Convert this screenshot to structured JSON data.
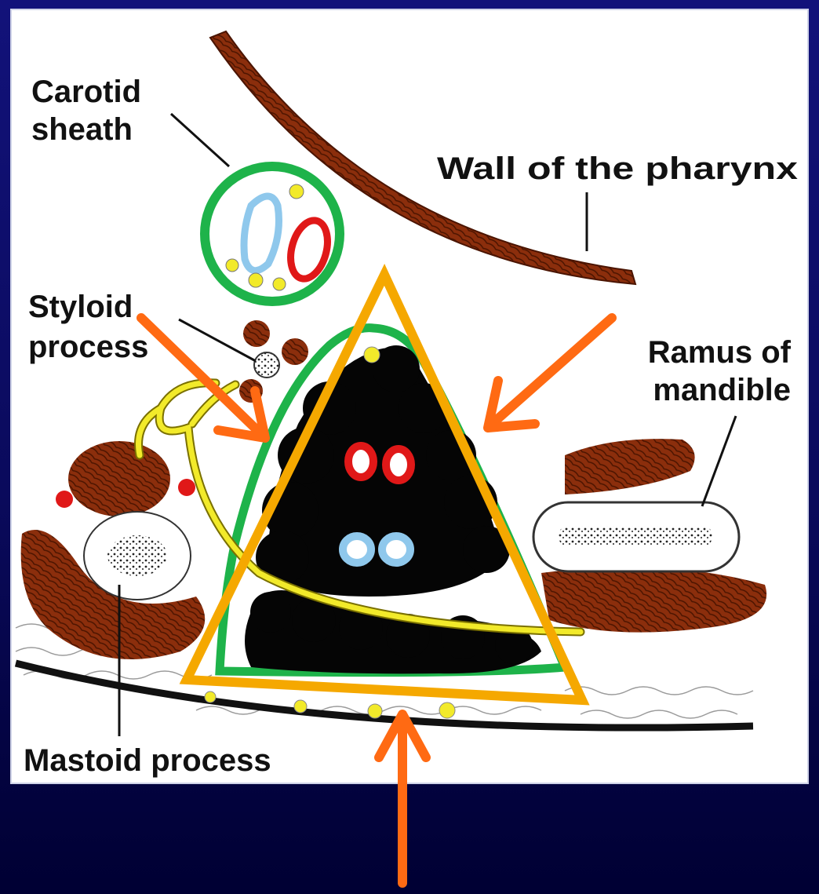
{
  "labels": {
    "carotid_line1": "Carotid",
    "carotid_line2": "sheath",
    "pharynx": "Wall of the pharynx",
    "styloid_line1": "Styloid",
    "styloid_line2": "process",
    "ramus_line1": "Ramus of",
    "ramus_line2": "mandible",
    "mastoid": "Mastoid process"
  },
  "colors": {
    "background": "#0a0a5c",
    "panel": "#ffffff",
    "muscle": "#8b2e0c",
    "fascia_green": "#1eb34a",
    "nerve_yellow": "#f2ea2a",
    "artery_red": "#e01818",
    "vein_blue": "#8fc8ec",
    "triangle_outline": "#f5a800",
    "arrow_orange": "#ff6a13",
    "fat_black": "#050505"
  }
}
